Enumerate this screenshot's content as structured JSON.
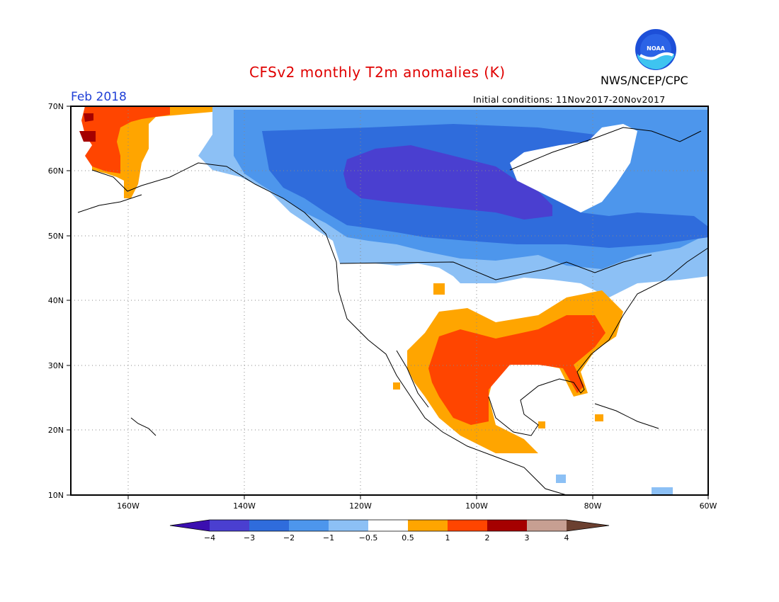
{
  "title": "CFSv2 monthly T2m anomalies (K)",
  "valid_month": "Feb 2018",
  "initial_conditions": "Initial conditions: 11Nov2017-20Nov2017",
  "agency": "NWS/NCEP/CPC",
  "logo_text": "NOAA",
  "lat_labels": [
    "70N",
    "60N",
    "50N",
    "40N",
    "30N",
    "20N",
    "10N"
  ],
  "lon_labels": [
    "160W",
    "140W",
    "120W",
    "100W",
    "80W",
    "60W"
  ],
  "legend": {
    "tick_labels": [
      "−4",
      "−3",
      "−2",
      "−1",
      "−0.5",
      "0.5",
      "1",
      "2",
      "3",
      "4"
    ],
    "colors": [
      "#3b0fb0",
      "#4a3fd0",
      "#2f6cdc",
      "#4d96ec",
      "#8cc0f5",
      "#ffffff",
      "#ffa500",
      "#ff4500",
      "#a50000",
      "#c79f92",
      "#6b4030"
    ]
  }
}
